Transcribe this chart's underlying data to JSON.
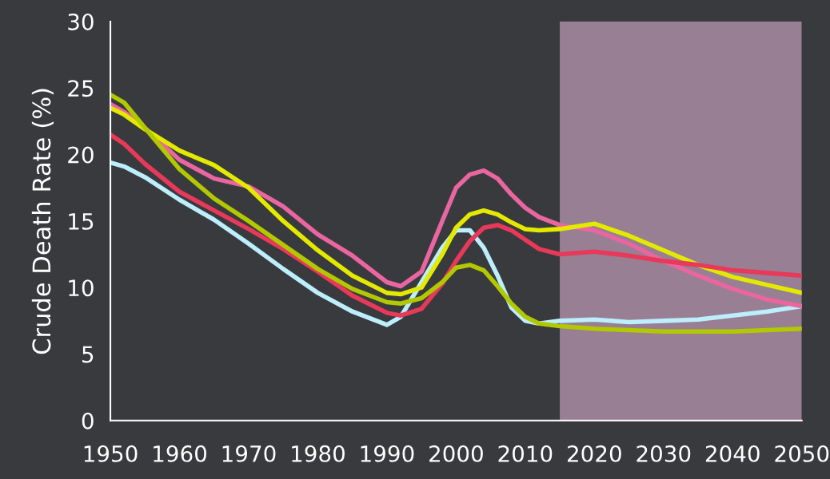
{
  "chart_data": {
    "type": "line",
    "ylabel": "Crude Death Rate (%)",
    "x": [
      1950,
      1952,
      1955,
      1960,
      1965,
      1970,
      1975,
      1980,
      1985,
      1990,
      1992,
      1995,
      1998,
      2000,
      2002,
      2004,
      2006,
      2008,
      2010,
      2012,
      2015,
      2020,
      2025,
      2030,
      2035,
      2040,
      2045,
      2050
    ],
    "series": [
      {
        "color": "#bdeefc",
        "values": [
          19.4,
          19.1,
          18.3,
          16.6,
          15.1,
          13.3,
          11.4,
          9.6,
          8.2,
          7.2,
          7.8,
          10.4,
          13.0,
          14.3,
          14.3,
          13.0,
          10.9,
          8.5,
          7.5,
          7.3,
          7.5,
          7.6,
          7.4,
          7.5,
          7.6,
          7.9,
          8.2,
          8.6
        ]
      },
      {
        "color": "#e966a0",
        "values": [
          23.8,
          23.2,
          22.0,
          19.6,
          18.2,
          17.6,
          16.1,
          14.0,
          12.4,
          10.4,
          10.1,
          11.2,
          15.0,
          17.5,
          18.5,
          18.8,
          18.2,
          17.0,
          16.0,
          15.3,
          14.7,
          14.3,
          13.3,
          12.0,
          10.9,
          9.9,
          9.1,
          8.6
        ]
      },
      {
        "color": "#e3ea00",
        "values": [
          23.5,
          23.0,
          21.9,
          20.3,
          19.2,
          17.5,
          15.0,
          12.8,
          10.9,
          9.6,
          9.5,
          10.0,
          12.5,
          14.5,
          15.5,
          15.8,
          15.5,
          14.9,
          14.4,
          14.3,
          14.4,
          14.8,
          13.9,
          12.8,
          11.7,
          10.8,
          10.2,
          9.6
        ]
      },
      {
        "color": "#e8395a",
        "values": [
          21.5,
          20.8,
          19.3,
          17.2,
          15.8,
          14.4,
          12.9,
          11.2,
          9.4,
          8.1,
          7.9,
          8.4,
          10.3,
          12.0,
          13.5,
          14.5,
          14.7,
          14.3,
          13.6,
          12.9,
          12.5,
          12.7,
          12.4,
          12.0,
          11.7,
          11.3,
          11.1,
          10.9
        ]
      },
      {
        "color": "#b2c800",
        "values": [
          24.5,
          23.9,
          22.0,
          18.9,
          16.7,
          15.0,
          13.2,
          11.4,
          9.9,
          8.9,
          8.8,
          9.2,
          10.4,
          11.5,
          11.7,
          11.3,
          10.1,
          8.8,
          7.8,
          7.3,
          7.1,
          6.9,
          6.8,
          6.7,
          6.7,
          6.7,
          6.8,
          6.9
        ]
      }
    ],
    "xlim": [
      1950,
      2050
    ],
    "xticks": [
      1950,
      1960,
      1970,
      1980,
      1990,
      2000,
      2010,
      2020,
      2030,
      2040,
      2050
    ],
    "ylim": [
      0,
      30
    ],
    "yticks": [
      0,
      5,
      10,
      15,
      20,
      25,
      30
    ],
    "bands": [
      {
        "axis": "x",
        "from": 2015,
        "to": 2050,
        "color": "#e8b8d8"
      }
    ],
    "grid": false,
    "legend": false,
    "marker": "none",
    "line_style": "solid"
  }
}
